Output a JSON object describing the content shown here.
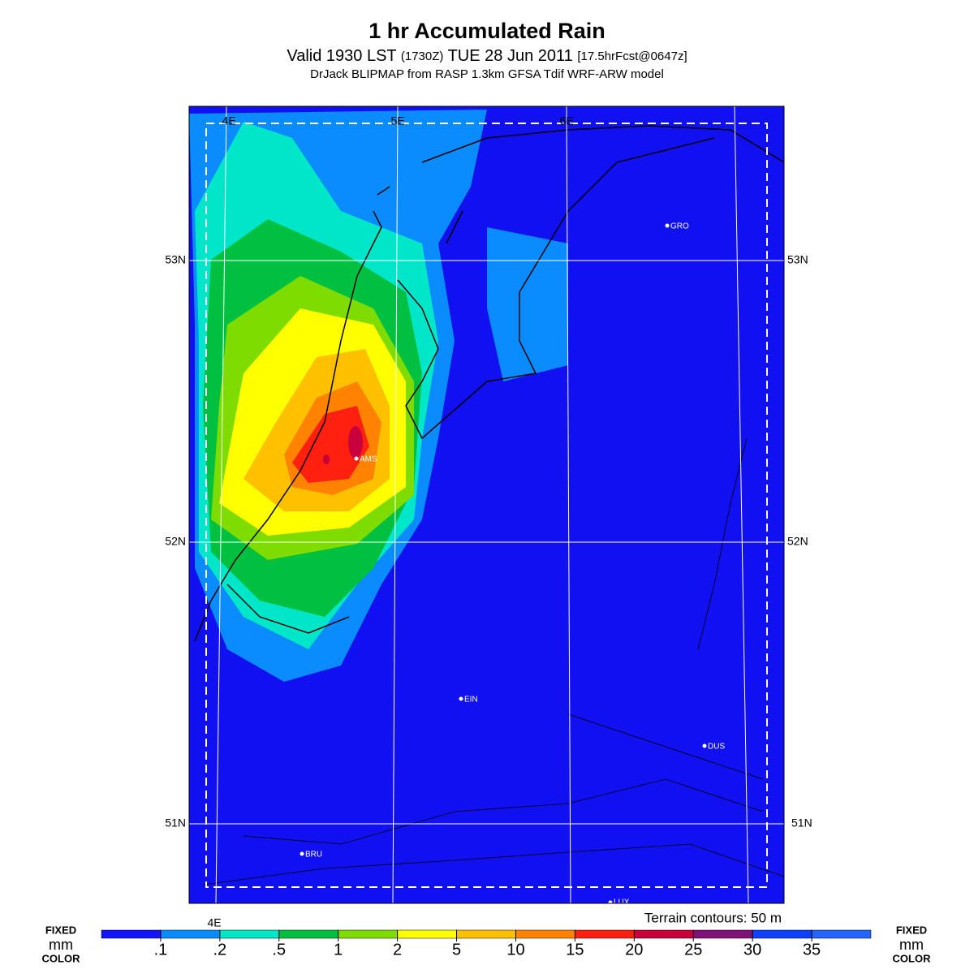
{
  "header": {
    "title": "1 hr Accumulated Rain",
    "valid": "Valid 1930 LST",
    "zulu": "(1730Z)",
    "date": "TUE 28 Jun 2011",
    "forecast": "[17.5hrFcst@0647z]",
    "model": "DrJack BLIPMAP from RASP 1.3km GFSA Tdif WRF-ARW model"
  },
  "map": {
    "lon_labels": [
      "4E",
      "5E",
      "6E"
    ],
    "lat_labels": [
      "53N",
      "52N",
      "51N"
    ],
    "cities": [
      "GRO",
      "AMS",
      "EIN",
      "DUS",
      "BRU",
      "LUX"
    ],
    "terrain_note": "Terrain contours: 50 m"
  },
  "legend": {
    "side_label": [
      "FIXED",
      "mm",
      "COLOR"
    ],
    "colors": [
      "#1414ff",
      "#0a8cff",
      "#00e6c8",
      "#00c040",
      "#7fdc00",
      "#ffff00",
      "#ffc000",
      "#ff8200",
      "#ff2010",
      "#c8003c",
      "#80107a",
      "#1040ff",
      "#2464ff"
    ],
    "ticks": [
      {
        "value": 0.1,
        "label": ".1"
      },
      {
        "value": 0.2,
        "label": ".2"
      },
      {
        "value": 0.5,
        "label": ".5"
      },
      1,
      2,
      5,
      10,
      15,
      20,
      25,
      30,
      35
    ]
  }
}
